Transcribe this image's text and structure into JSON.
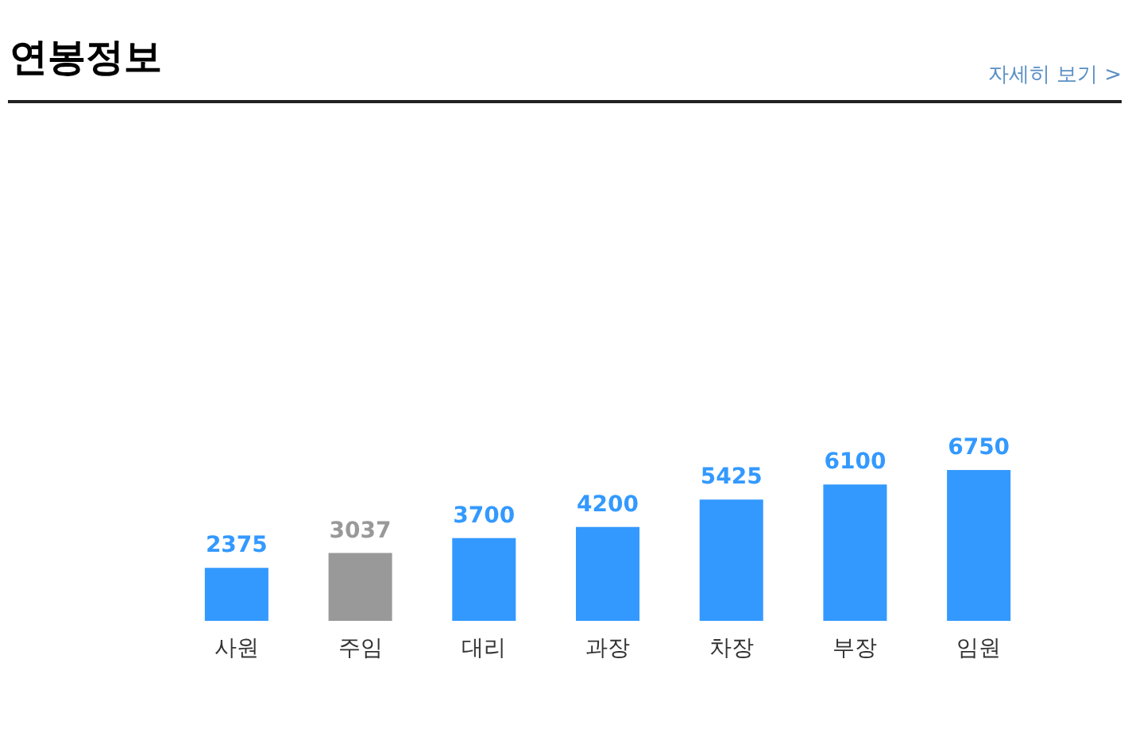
{
  "chart_data": {
    "type": "bar",
    "title": "연봉정보",
    "annotations": [
      "자세히 보기 >"
    ],
    "categories": [
      "사원",
      "주임",
      "대리",
      "과장",
      "차장",
      "부장",
      "임원"
    ],
    "values": [
      2375,
      3037,
      3700,
      4200,
      5425,
      6100,
      6750
    ],
    "colors": [
      "#3399ff",
      "#999999",
      "#3399ff",
      "#3399ff",
      "#3399ff",
      "#3399ff",
      "#3399ff"
    ],
    "data_labels": true,
    "tick_labels": "x"
  }
}
